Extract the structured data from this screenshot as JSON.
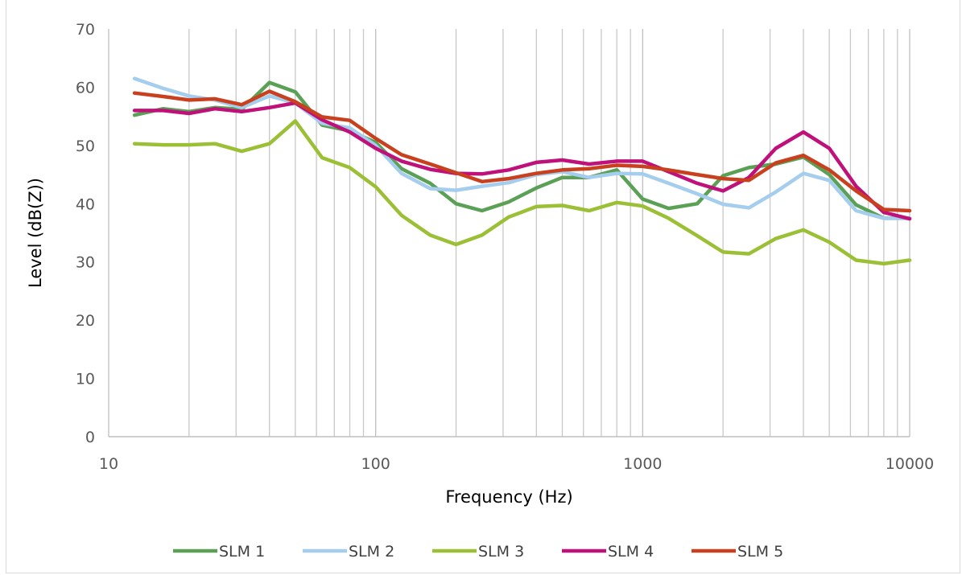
{
  "chart_data": {
    "type": "line",
    "title": "",
    "xlabel": "Frequency (Hz)",
    "ylabel": "Level (dB(Z))",
    "xscale": "log",
    "xlim": [
      10,
      10000
    ],
    "ylim": [
      0,
      70
    ],
    "x_ticks": [
      "10",
      "100",
      "1000",
      "10000"
    ],
    "y_ticks": [
      "0",
      "10",
      "20",
      "30",
      "40",
      "50",
      "60",
      "70"
    ],
    "grid": "vertical minor and major lines on log x axis",
    "legend_position": "bottom",
    "x": [
      12.5,
      16,
      20,
      25,
      31.5,
      40,
      50,
      63,
      80,
      100,
      125,
      160,
      200,
      250,
      315,
      400,
      500,
      630,
      800,
      1000,
      1250,
      1600,
      2000,
      2500,
      3150,
      4000,
      5000,
      6300,
      8000,
      10000
    ],
    "series": [
      {
        "name": "SLM 1",
        "color": "#5aa055",
        "values": [
          55.2,
          56.3,
          55.8,
          56.5,
          56.2,
          60.8,
          59.2,
          53.5,
          52.5,
          50.5,
          46.0,
          43.5,
          40.0,
          38.8,
          40.3,
          42.7,
          44.5,
          44.5,
          45.8,
          40.8,
          39.2,
          40.0,
          44.8,
          46.2,
          46.8,
          48.0,
          45.0,
          39.8,
          37.5,
          37.5
        ]
      },
      {
        "name": "SLM 2",
        "color": "#a5cdee",
        "values": [
          61.5,
          59.8,
          58.5,
          57.8,
          56.5,
          58.5,
          57.3,
          53.8,
          53.0,
          50.0,
          45.2,
          42.6,
          42.3,
          43.0,
          43.6,
          45.0,
          45.5,
          44.5,
          45.2,
          45.1,
          43.5,
          41.7,
          39.9,
          39.3,
          42.0,
          45.2,
          44.0,
          38.8,
          37.5,
          37.5
        ]
      },
      {
        "name": "SLM 3",
        "color": "#9bbf35",
        "values": [
          50.3,
          50.1,
          50.1,
          50.3,
          49.0,
          50.3,
          54.2,
          47.9,
          46.2,
          42.9,
          38.0,
          34.6,
          33.0,
          34.6,
          37.7,
          39.5,
          39.7,
          38.8,
          40.2,
          39.6,
          37.5,
          34.5,
          31.7,
          31.4,
          34.0,
          35.5,
          33.4,
          30.3,
          29.7,
          30.3
        ]
      },
      {
        "name": "SLM 4",
        "color": "#c0107a",
        "values": [
          56.0,
          56.0,
          55.5,
          56.3,
          55.8,
          56.5,
          57.3,
          54.4,
          52.3,
          49.5,
          47.3,
          45.9,
          45.2,
          45.1,
          45.8,
          47.1,
          47.5,
          46.8,
          47.3,
          47.3,
          45.5,
          43.5,
          42.2,
          44.5,
          49.5,
          52.3,
          49.5,
          43.0,
          38.5,
          37.4
        ]
      },
      {
        "name": "SLM 5",
        "color": "#c8401d",
        "values": [
          59.0,
          58.4,
          57.8,
          58.0,
          57.0,
          59.3,
          57.5,
          54.9,
          54.3,
          51.2,
          48.4,
          46.8,
          45.3,
          43.8,
          44.3,
          45.2,
          45.8,
          46.0,
          46.6,
          46.4,
          45.8,
          45.0,
          44.3,
          44.0,
          47.0,
          48.3,
          45.8,
          42.2,
          39.0,
          38.8
        ]
      }
    ]
  }
}
